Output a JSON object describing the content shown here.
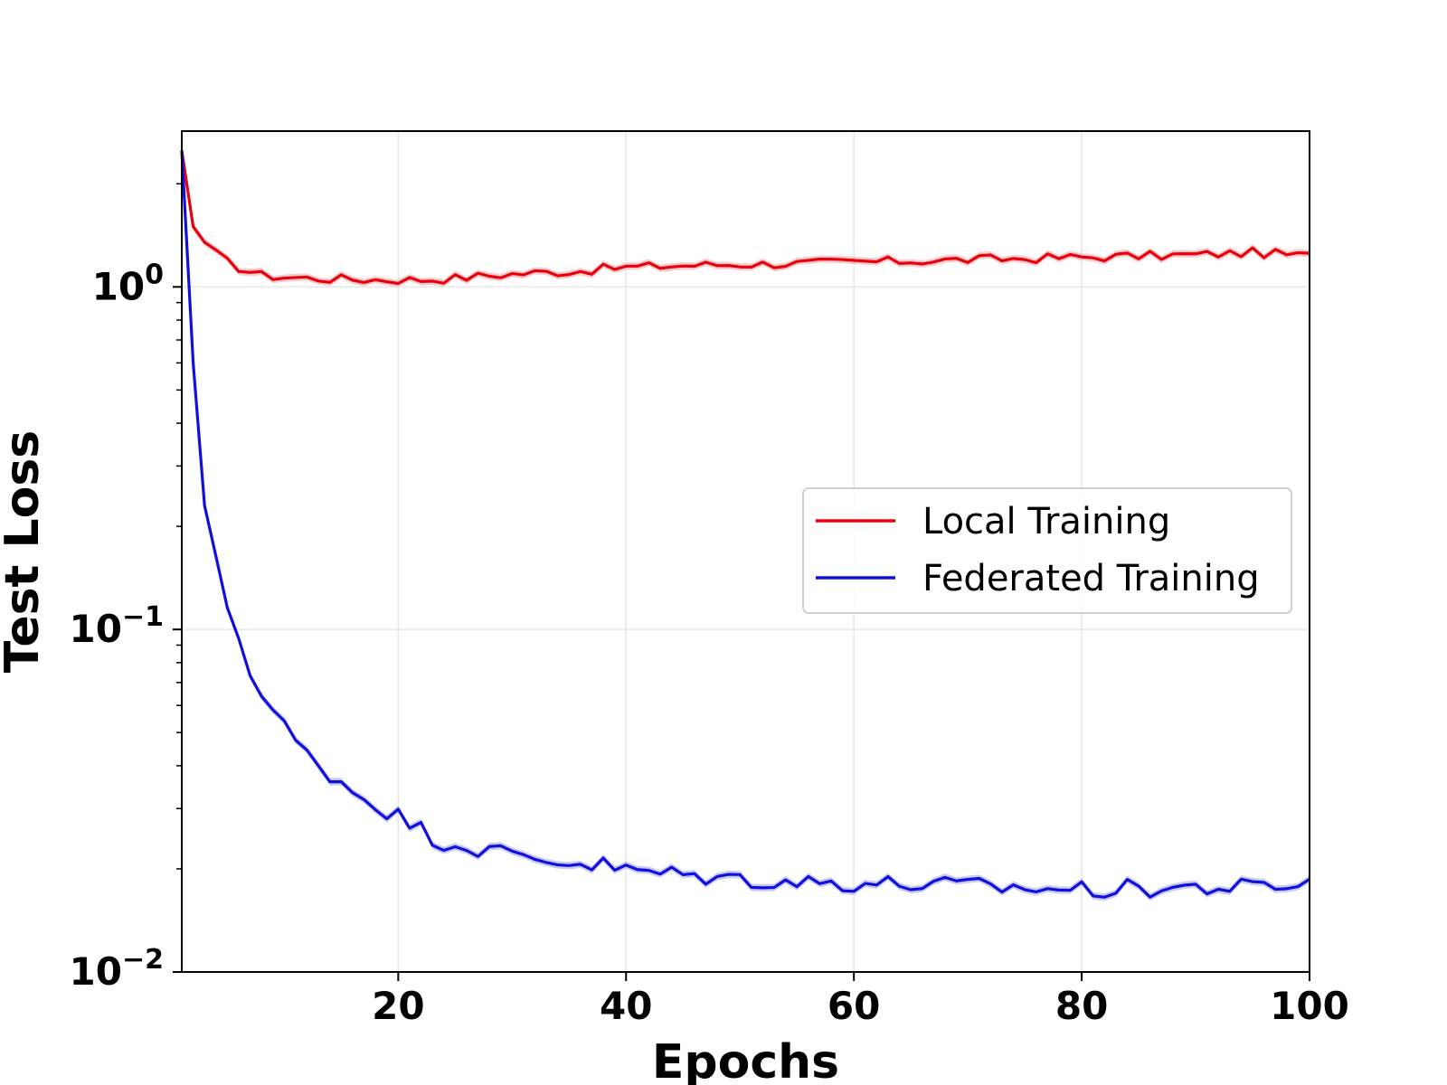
{
  "chart_data": {
    "type": "line",
    "xlabel": "Epochs",
    "ylabel": "Test Loss",
    "yscale": "log",
    "xlim": [
      1,
      100
    ],
    "ylim": [
      0.01,
      2.85
    ],
    "grid": true,
    "legend_position": "center-right",
    "x_ticks": [
      20,
      40,
      60,
      80,
      100
    ],
    "y_ticks": [
      {
        "value": 1,
        "base": "10",
        "exp": "0"
      },
      {
        "value": 0.1,
        "base": "10",
        "exp": "−1"
      },
      {
        "value": 0.01,
        "base": "10",
        "exp": "−2"
      }
    ],
    "series": [
      {
        "name": "Local Training",
        "color": "#e8000b",
        "band_color": "#f4a0a5",
        "anchors": [
          [
            1,
            2.5
          ],
          [
            2,
            1.5
          ],
          [
            3,
            1.35
          ],
          [
            4,
            1.25
          ],
          [
            5,
            1.18
          ],
          [
            6,
            1.14
          ],
          [
            7,
            1.11
          ],
          [
            8,
            1.08
          ],
          [
            9,
            1.075
          ],
          [
            10,
            1.07
          ],
          [
            12,
            1.06
          ],
          [
            15,
            1.055
          ],
          [
            18,
            1.05
          ],
          [
            20,
            1.05
          ],
          [
            22,
            1.05
          ],
          [
            25,
            1.06
          ],
          [
            28,
            1.08
          ],
          [
            30,
            1.09
          ],
          [
            32,
            1.1
          ],
          [
            35,
            1.11
          ],
          [
            40,
            1.14
          ],
          [
            45,
            1.155
          ],
          [
            50,
            1.165
          ],
          [
            55,
            1.17
          ],
          [
            60,
            1.18
          ],
          [
            65,
            1.19
          ],
          [
            70,
            1.2
          ],
          [
            75,
            1.21
          ],
          [
            80,
            1.22
          ],
          [
            85,
            1.23
          ],
          [
            90,
            1.24
          ],
          [
            95,
            1.26
          ],
          [
            100,
            1.23
          ]
        ],
        "noise": 0.014
      },
      {
        "name": "Federated Training",
        "color": "#1010dd",
        "band_color": "#9c9cf0",
        "anchors": [
          [
            1,
            2.5
          ],
          [
            2,
            0.6
          ],
          [
            3,
            0.23
          ],
          [
            4,
            0.155
          ],
          [
            5,
            0.118
          ],
          [
            6,
            0.095
          ],
          [
            7,
            0.077
          ],
          [
            8,
            0.064
          ],
          [
            9,
            0.058
          ],
          [
            10,
            0.052
          ],
          [
            11,
            0.047
          ],
          [
            12,
            0.043
          ],
          [
            14,
            0.038
          ],
          [
            16,
            0.034
          ],
          [
            18,
            0.031
          ],
          [
            20,
            0.0285
          ],
          [
            22,
            0.026
          ],
          [
            24,
            0.024
          ],
          [
            26,
            0.0235
          ],
          [
            28,
            0.0225
          ],
          [
            30,
            0.022
          ],
          [
            32,
            0.0215
          ],
          [
            35,
            0.021
          ],
          [
            38,
            0.0205
          ],
          [
            40,
            0.0198
          ],
          [
            45,
            0.0192
          ],
          [
            50,
            0.0187
          ],
          [
            55,
            0.0183
          ],
          [
            60,
            0.0182
          ],
          [
            65,
            0.018
          ],
          [
            70,
            0.0178
          ],
          [
            75,
            0.0176
          ],
          [
            80,
            0.0174
          ],
          [
            85,
            0.0175
          ],
          [
            90,
            0.0177
          ],
          [
            95,
            0.0176
          ],
          [
            100,
            0.0182
          ]
        ],
        "noise": 0.028
      }
    ]
  }
}
